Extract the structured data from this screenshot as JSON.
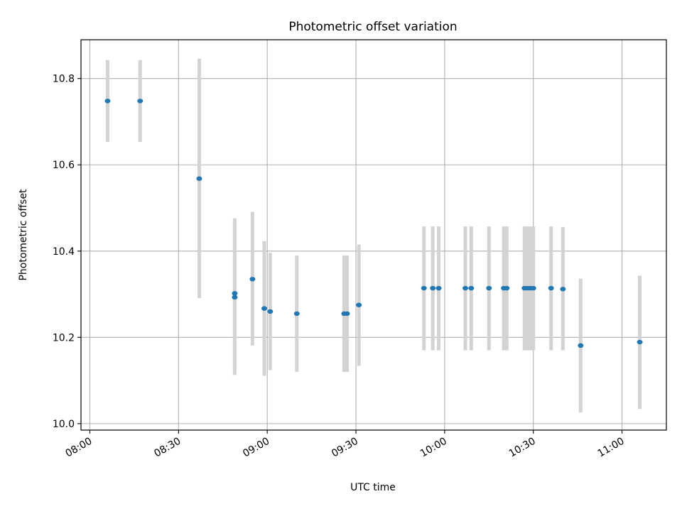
{
  "chart_data": {
    "type": "scatter",
    "title": "Photometric offset variation",
    "xlabel": "UTC time",
    "ylabel": "Photometric offset",
    "x_ticks": [
      "08:00",
      "08:30",
      "09:00",
      "09:30",
      "10:00",
      "10:30",
      "11:00"
    ],
    "y_ticks": [
      "10.0",
      "10.2",
      "10.4",
      "10.6",
      "10.8"
    ],
    "xlim": [
      "07:57",
      "11:15"
    ],
    "ylim": [
      9.985,
      10.89
    ],
    "grid": true,
    "colors": {
      "points": "#1f77b4",
      "errorbars": "#d3d3d3",
      "grid": "#b0b0b0"
    },
    "points": [
      {
        "x": "08:06",
        "y": 10.748,
        "ylo": 10.653,
        "yhi": 10.843
      },
      {
        "x": "08:17",
        "y": 10.748,
        "ylo": 10.653,
        "yhi": 10.843
      },
      {
        "x": "08:37",
        "y": 10.568,
        "ylo": 10.291,
        "yhi": 10.846
      },
      {
        "x": "08:49",
        "y": 10.293,
        "ylo": 10.113,
        "yhi": 10.472
      },
      {
        "x": "08:49",
        "y": 10.302,
        "ylo": 10.128,
        "yhi": 10.476
      },
      {
        "x": "08:55",
        "y": 10.335,
        "ylo": 10.181,
        "yhi": 10.491
      },
      {
        "x": "08:59",
        "y": 10.267,
        "ylo": 10.111,
        "yhi": 10.423
      },
      {
        "x": "09:01",
        "y": 10.26,
        "ylo": 10.124,
        "yhi": 10.396
      },
      {
        "x": "09:10",
        "y": 10.255,
        "ylo": 10.12,
        "yhi": 10.39
      },
      {
        "x": "09:26",
        "y": 10.255,
        "ylo": 10.12,
        "yhi": 10.39
      },
      {
        "x": "09:27",
        "y": 10.255,
        "ylo": 10.12,
        "yhi": 10.39
      },
      {
        "x": "09:31",
        "y": 10.275,
        "ylo": 10.134,
        "yhi": 10.415
      },
      {
        "x": "09:53",
        "y": 10.314,
        "ylo": 10.17,
        "yhi": 10.457
      },
      {
        "x": "09:56",
        "y": 10.314,
        "ylo": 10.17,
        "yhi": 10.457
      },
      {
        "x": "09:58",
        "y": 10.314,
        "ylo": 10.17,
        "yhi": 10.457
      },
      {
        "x": "10:07",
        "y": 10.314,
        "ylo": 10.17,
        "yhi": 10.457
      },
      {
        "x": "10:09",
        "y": 10.314,
        "ylo": 10.17,
        "yhi": 10.457
      },
      {
        "x": "10:15",
        "y": 10.314,
        "ylo": 10.17,
        "yhi": 10.457
      },
      {
        "x": "10:20",
        "y": 10.314,
        "ylo": 10.17,
        "yhi": 10.457
      },
      {
        "x": "10:21",
        "y": 10.314,
        "ylo": 10.17,
        "yhi": 10.457
      },
      {
        "x": "10:27",
        "y": 10.314,
        "ylo": 10.17,
        "yhi": 10.457
      },
      {
        "x": "10:28",
        "y": 10.314,
        "ylo": 10.17,
        "yhi": 10.457
      },
      {
        "x": "10:29",
        "y": 10.314,
        "ylo": 10.17,
        "yhi": 10.457
      },
      {
        "x": "10:30",
        "y": 10.314,
        "ylo": 10.17,
        "yhi": 10.457
      },
      {
        "x": "10:36",
        "y": 10.314,
        "ylo": 10.17,
        "yhi": 10.457
      },
      {
        "x": "10:40",
        "y": 10.312,
        "ylo": 10.17,
        "yhi": 10.456
      },
      {
        "x": "10:46",
        "y": 10.181,
        "ylo": 10.026,
        "yhi": 10.336
      },
      {
        "x": "11:06",
        "y": 10.189,
        "ylo": 10.034,
        "yhi": 10.343
      }
    ]
  }
}
